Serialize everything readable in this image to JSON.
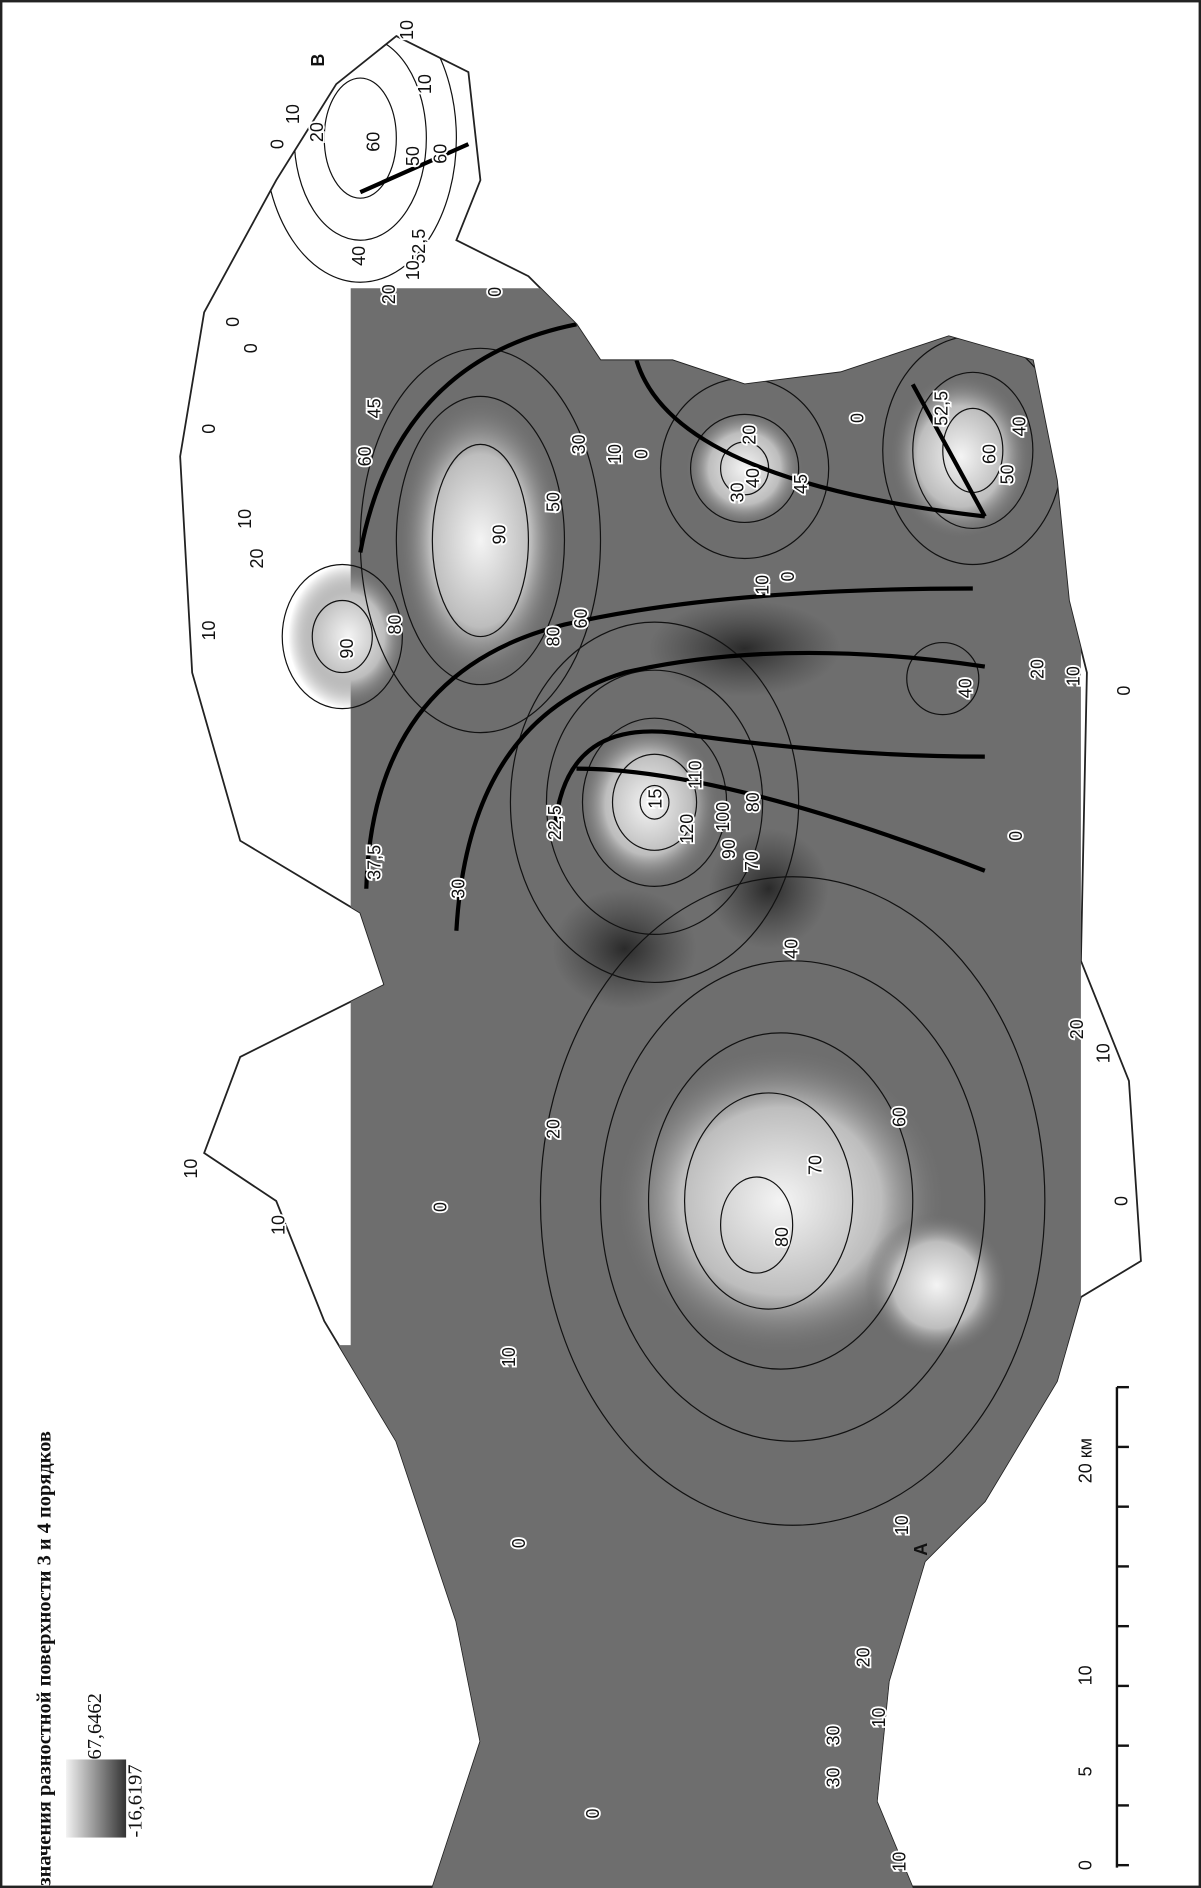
{
  "legend": {
    "title": "значения разностной поверхности 3 и 4 порядков",
    "max": "67,6462",
    "min": "-16,6197"
  },
  "scale": {
    "ticks": [
      "0",
      "5",
      "10",
      "20 км"
    ]
  },
  "points": [
    "А",
    "В"
  ],
  "contour_labels": [
    "10",
    "10",
    "10",
    "20",
    "0",
    "60",
    "50",
    "60",
    "52,5",
    "40",
    "10",
    "20",
    "0",
    "0",
    "0",
    "0",
    "45",
    "60",
    "30",
    "10",
    "0",
    "20",
    "40",
    "45",
    "30",
    "0",
    "52,5",
    "40",
    "60",
    "50",
    "50",
    "90",
    "10",
    "20",
    "10",
    "90",
    "80",
    "80",
    "60",
    "10",
    "0",
    "20",
    "10",
    "0",
    "40",
    "22,5",
    "15",
    "120",
    "110",
    "100",
    "80",
    "90",
    "70",
    "0",
    "37,5",
    "30",
    "40",
    "20",
    "20",
    "10",
    "60",
    "70",
    "80",
    "0",
    "10",
    "10",
    "0",
    "10",
    "0",
    "10",
    "20",
    "10",
    "30",
    "30",
    "0",
    "10"
  ]
}
